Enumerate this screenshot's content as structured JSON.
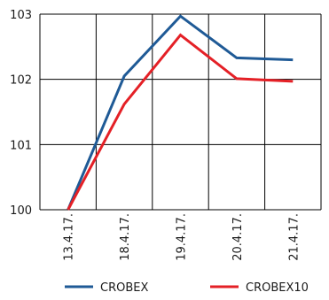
{
  "chart_data": {
    "type": "line",
    "categories": [
      "13.4.17.",
      "18.4.17.",
      "19.4.17.",
      "20.4.17.",
      "21.4.17."
    ],
    "series": [
      {
        "name": "CROBEX",
        "color": "#1f5a96",
        "values": [
          100.0,
          102.05,
          102.97,
          102.33,
          102.3
        ]
      },
      {
        "name": "CROBEX10",
        "color": "#e42026",
        "values": [
          100.0,
          101.62,
          102.68,
          102.01,
          101.97
        ]
      }
    ],
    "ylim": [
      100,
      103
    ],
    "yticks": [
      "100",
      "101",
      "102",
      "103"
    ],
    "grid": true,
    "legend": "bottom",
    "title": "",
    "xlabel": "",
    "ylabel": ""
  }
}
